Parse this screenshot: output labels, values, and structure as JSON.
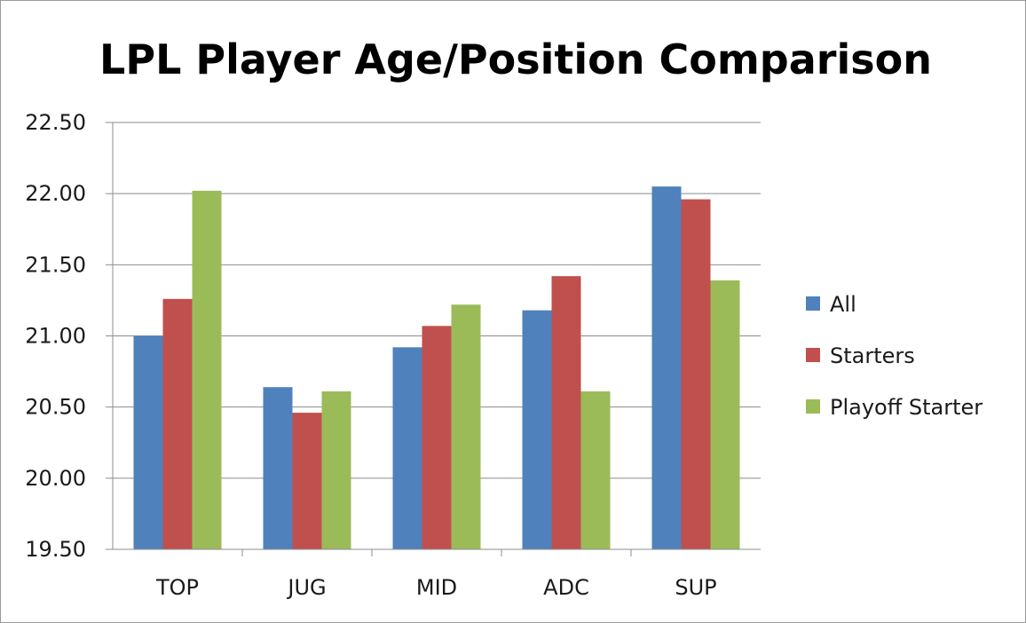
{
  "chart_data": {
    "type": "bar",
    "title": "LPL Player Age/Position Comparison",
    "xlabel": "",
    "ylabel": "",
    "categories": [
      "TOP",
      "JUG",
      "MID",
      "ADC",
      "SUP"
    ],
    "series": [
      {
        "name": "All",
        "color": "#4f81bd",
        "values": [
          21.0,
          20.64,
          20.92,
          21.18,
          22.05
        ]
      },
      {
        "name": "Starters",
        "color": "#c0504d",
        "values": [
          21.26,
          20.46,
          21.07,
          21.42,
          21.96
        ]
      },
      {
        "name": "Playoff Starter",
        "color": "#9bbb59",
        "values": [
          22.02,
          20.61,
          21.22,
          20.61,
          21.39
        ]
      }
    ],
    "ylim": [
      19.5,
      22.5
    ],
    "yticks": [
      "19.50",
      "20.00",
      "20.50",
      "21.00",
      "21.50",
      "22.00",
      "22.50"
    ],
    "grid": true,
    "legend_position": "right"
  }
}
